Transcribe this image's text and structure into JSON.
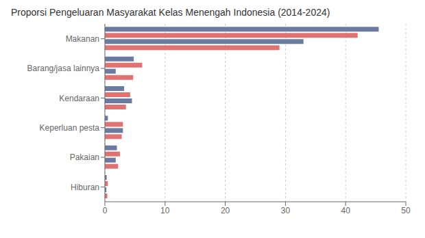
{
  "chart_data": {
    "type": "bar",
    "orientation": "horizontal",
    "title": "Proporsi Pengeluaran Masyarakat Kelas Menengah Indonesia (2014-2024)",
    "categories": [
      "Makanan",
      "Barang/jasa lainnya",
      "Kendaraan",
      "Keperluan pesta",
      "Pakaian",
      "Hiburan"
    ],
    "series": [
      {
        "color": "#6b7a9f",
        "values": [
          45.5,
          4.8,
          3.2,
          0.5,
          2.0,
          0.3
        ]
      },
      {
        "color": "#e07272",
        "values": [
          42.0,
          6.2,
          4.2,
          3.0,
          2.5,
          0.5
        ]
      },
      {
        "color": "#6b7a9f",
        "values": [
          33.0,
          1.8,
          4.5,
          3.0,
          1.8,
          0.25
        ]
      },
      {
        "color": "#e07272",
        "values": [
          29.0,
          4.7,
          3.5,
          2.8,
          2.2,
          0.4
        ]
      }
    ],
    "xlim": [
      0,
      50
    ],
    "xticks": [
      0,
      10,
      20,
      30,
      40,
      50
    ],
    "grid": true
  }
}
